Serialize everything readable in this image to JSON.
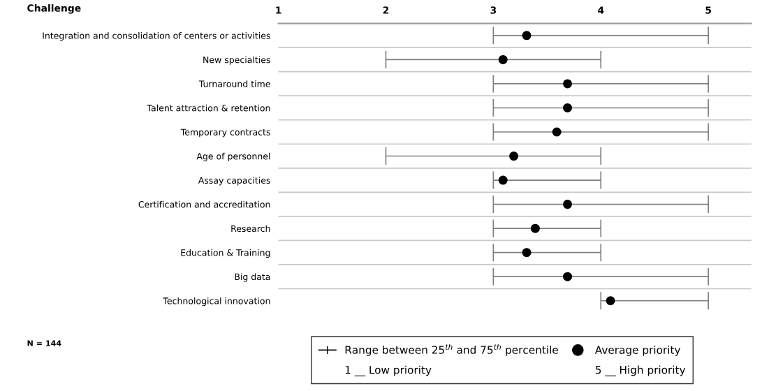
{
  "chart_data": {
    "type": "scatter",
    "orientation": "horizontal",
    "ylabel": "Challenge",
    "categories": [
      "Integration and consolidation of centers or activities",
      "New specialties",
      "Turnaround time",
      "Talent attraction & retention",
      "Temporary contracts",
      "Age of personnel",
      "Assay capacities",
      "Certification and accreditation",
      "Research",
      "Education & Training",
      "Big data",
      "Technological innovation"
    ],
    "series": [
      {
        "name": "Average priority",
        "color": "#000000",
        "values": [
          3.31,
          3.09,
          3.69,
          3.69,
          3.59,
          3.19,
          3.09,
          3.69,
          3.39,
          3.31,
          3.69,
          4.09
        ],
        "errors": [
          [
            3,
            5
          ],
          [
            2,
            4
          ],
          [
            3,
            5
          ],
          [
            3,
            5
          ],
          [
            3,
            5
          ],
          [
            2,
            4
          ],
          [
            3,
            4
          ],
          [
            3,
            5
          ],
          [
            3,
            4
          ],
          [
            3,
            4
          ],
          [
            3,
            5
          ],
          [
            4,
            5
          ]
        ]
      }
    ],
    "marker": "circle",
    "xlim": [
      1,
      5.4
    ],
    "xticks": [
      1,
      2,
      3,
      4,
      5
    ],
    "grid": "y",
    "legend": "bottom",
    "annotations": [
      "Range between 25$^{th}$ and 75$^{th}$ percentile",
      "1 __ Low priority",
      "5 __ High priority",
      "N = 144"
    ]
  }
}
